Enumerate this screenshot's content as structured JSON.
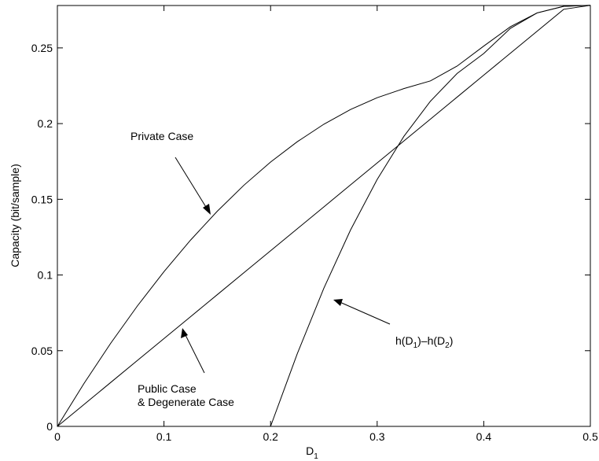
{
  "chart_data": {
    "type": "line",
    "title": "",
    "xlabel": "D",
    "xlabel_sub": "1",
    "ylabel": "Capacity (bit/sample)",
    "xlim": [
      0,
      0.5
    ],
    "ylim": [
      0,
      0.278
    ],
    "xticks": [
      0,
      0.1,
      0.2,
      0.3,
      0.4,
      0.5
    ],
    "xtick_labels": [
      "0",
      "0.1",
      "0.2",
      "0.3",
      "0.4",
      "0.5"
    ],
    "yticks": [
      0,
      0.05,
      0.1,
      0.15,
      0.2,
      0.25
    ],
    "ytick_labels": [
      "0",
      "0.05",
      "0.1",
      "0.15",
      "0.2",
      "0.25"
    ],
    "grid": false,
    "series": [
      {
        "x": [
          0,
          0.025,
          0.05,
          0.075,
          0.1,
          0.125,
          0.15,
          0.175,
          0.2,
          0.225,
          0.25,
          0.275,
          0.3,
          0.325,
          0.35,
          0.375,
          0.4,
          0.425,
          0.45,
          0.475,
          0.5
        ],
        "values": [
          0,
          0.0284,
          0.0549,
          0.0795,
          0.1022,
          0.1231,
          0.1421,
          0.1593,
          0.1746,
          0.188,
          0.1996,
          0.2093,
          0.2171,
          0.2231,
          0.2282,
          0.238,
          0.2512,
          0.264,
          0.2731,
          0.2775,
          0.2781
        ]
      },
      {
        "x": [
          0,
          0.025,
          0.05,
          0.075,
          0.1,
          0.125,
          0.15,
          0.175,
          0.2,
          0.225,
          0.25,
          0.275,
          0.3,
          0.325,
          0.35,
          0.375,
          0.4,
          0.425,
          0.45,
          0.475,
          0.5
        ],
        "values": [
          0,
          0.0145,
          0.029,
          0.0435,
          0.058,
          0.0725,
          0.087,
          0.1015,
          0.116,
          0.1305,
          0.145,
          0.1595,
          0.174,
          0.1885,
          0.203,
          0.2175,
          0.232,
          0.2465,
          0.261,
          0.2755,
          0.2781
        ]
      },
      {
        "x": [
          0.2,
          0.225,
          0.25,
          0.275,
          0.3,
          0.325,
          0.35,
          0.375,
          0.4,
          0.425,
          0.45,
          0.475,
          0.5
        ],
        "values": [
          0,
          0.0479,
          0.0913,
          0.1297,
          0.1631,
          0.1915,
          0.2148,
          0.2331,
          0.2463,
          0.2629,
          0.2731,
          0.2775,
          0.2781
        ]
      }
    ],
    "annotations": [
      {
        "text": "Private Case",
        "arrow_to": [
          0.146,
          0.147
        ]
      },
      {
        "line1": "Public Case",
        "line2": "& Degenerate Case",
        "arrow_to": [
          0.118,
          0.066
        ]
      },
      {
        "prefix": "h(D",
        "sub1": "1",
        "mid": ")–h(D",
        "sub2": "2",
        "suffix": ")",
        "arrow_to": [
          0.257,
          0.086
        ]
      }
    ]
  }
}
